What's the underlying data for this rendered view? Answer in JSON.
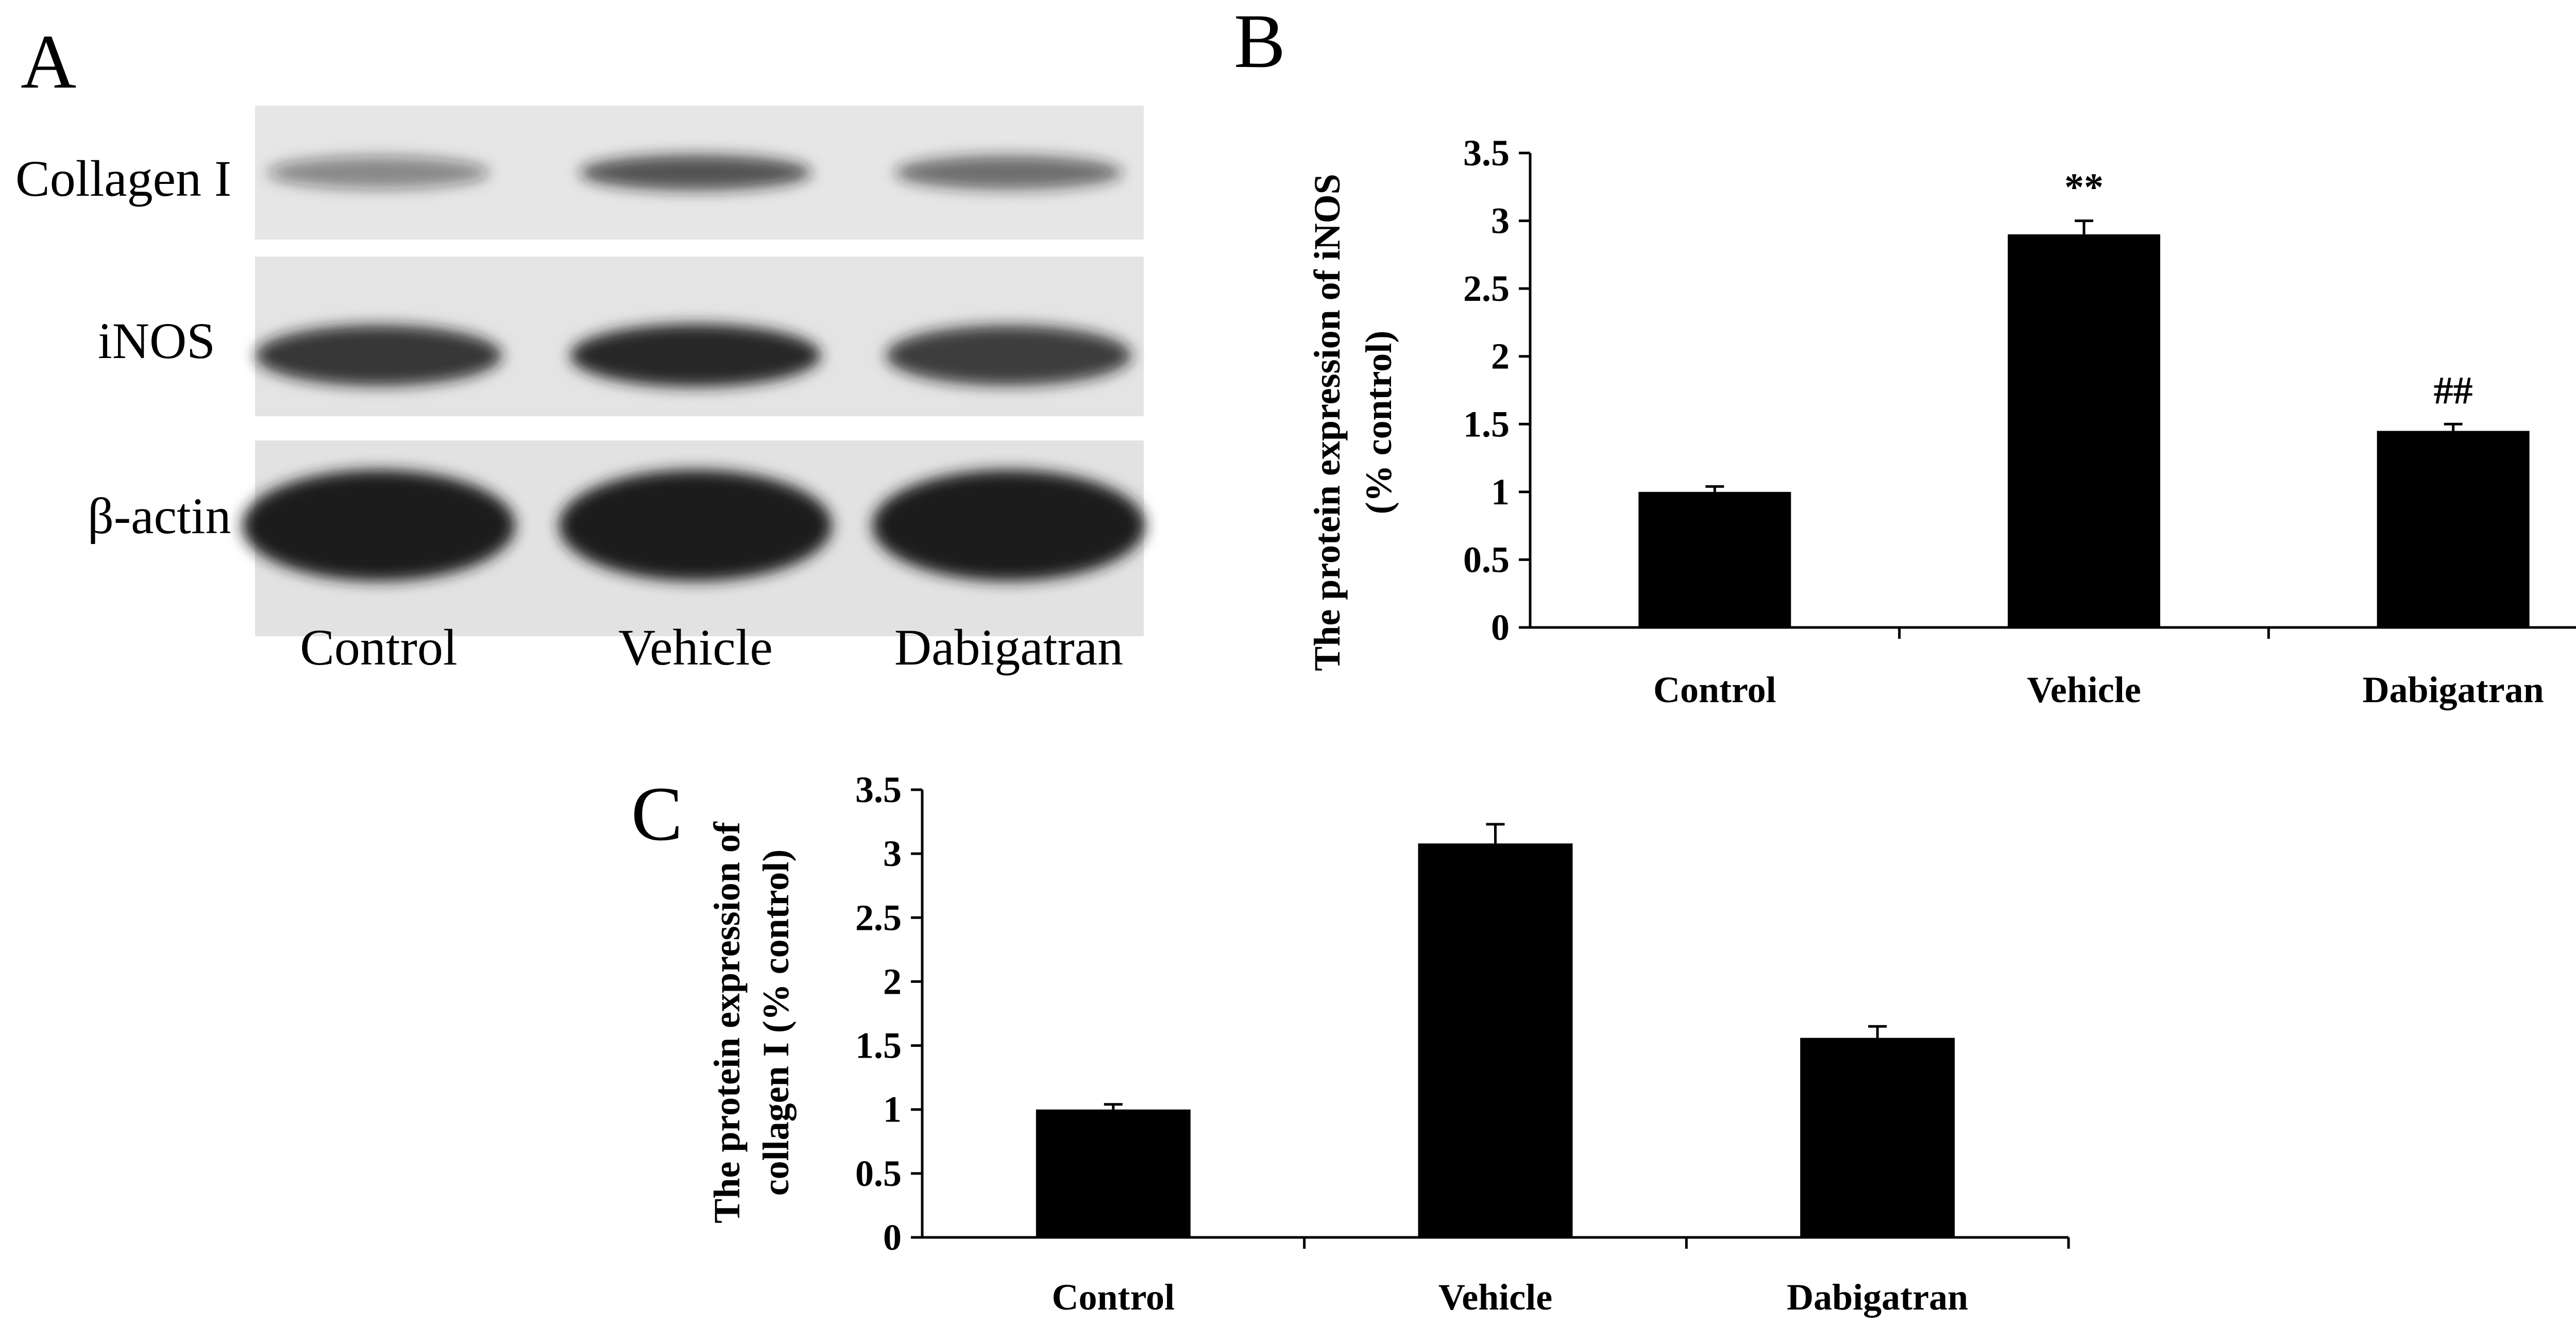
{
  "panel_a": {
    "letter": "A",
    "rows": [
      {
        "label": "Collagen I",
        "band_intensity": [
          0.45,
          0.72,
          0.6
        ]
      },
      {
        "label": "iNOS",
        "band_intensity": [
          0.85,
          0.95,
          0.82
        ]
      },
      {
        "label": "β-actin",
        "band_intensity": [
          1.0,
          1.0,
          1.0
        ]
      }
    ],
    "lanes": [
      "Control",
      "Vehicle",
      "Dabigatran"
    ],
    "colors": {
      "band": "#1a1a1a",
      "background": "#e6e6e6"
    }
  },
  "chart_data": [
    {
      "panel": "B",
      "type": "bar",
      "categories": [
        "Control",
        "Vehicle",
        "Dabigatran"
      ],
      "values": [
        1.0,
        2.9,
        1.45
      ],
      "errors": [
        0.04,
        0.1,
        0.05
      ],
      "annotations": [
        "",
        "**",
        "##"
      ],
      "title": "",
      "xlabel": "",
      "ylabel_lines": [
        "The protein expression of iNOS",
        "(% control)"
      ],
      "ylim": [
        0,
        3.5
      ],
      "yticks": [
        "0",
        "0.5",
        "1",
        "1.5",
        "2",
        "2.5",
        "3",
        "3.5"
      ],
      "bar_color": "#000000",
      "grid": false
    },
    {
      "panel": "C",
      "type": "bar",
      "categories": [
        "Control",
        "Vehicle",
        "Dabigatran"
      ],
      "values": [
        1.0,
        3.08,
        1.56
      ],
      "errors": [
        0.04,
        0.15,
        0.09
      ],
      "annotations": [
        "",
        "",
        ""
      ],
      "title": "",
      "xlabel": "",
      "ylabel_lines": [
        "The protein expression of",
        "collagen I (% control)"
      ],
      "ylim": [
        0,
        3.5
      ],
      "yticks": [
        "0",
        "0.5",
        "1",
        "1.5",
        "2",
        "2.5",
        "3",
        "3.5"
      ],
      "bar_color": "#000000",
      "grid": false
    }
  ]
}
